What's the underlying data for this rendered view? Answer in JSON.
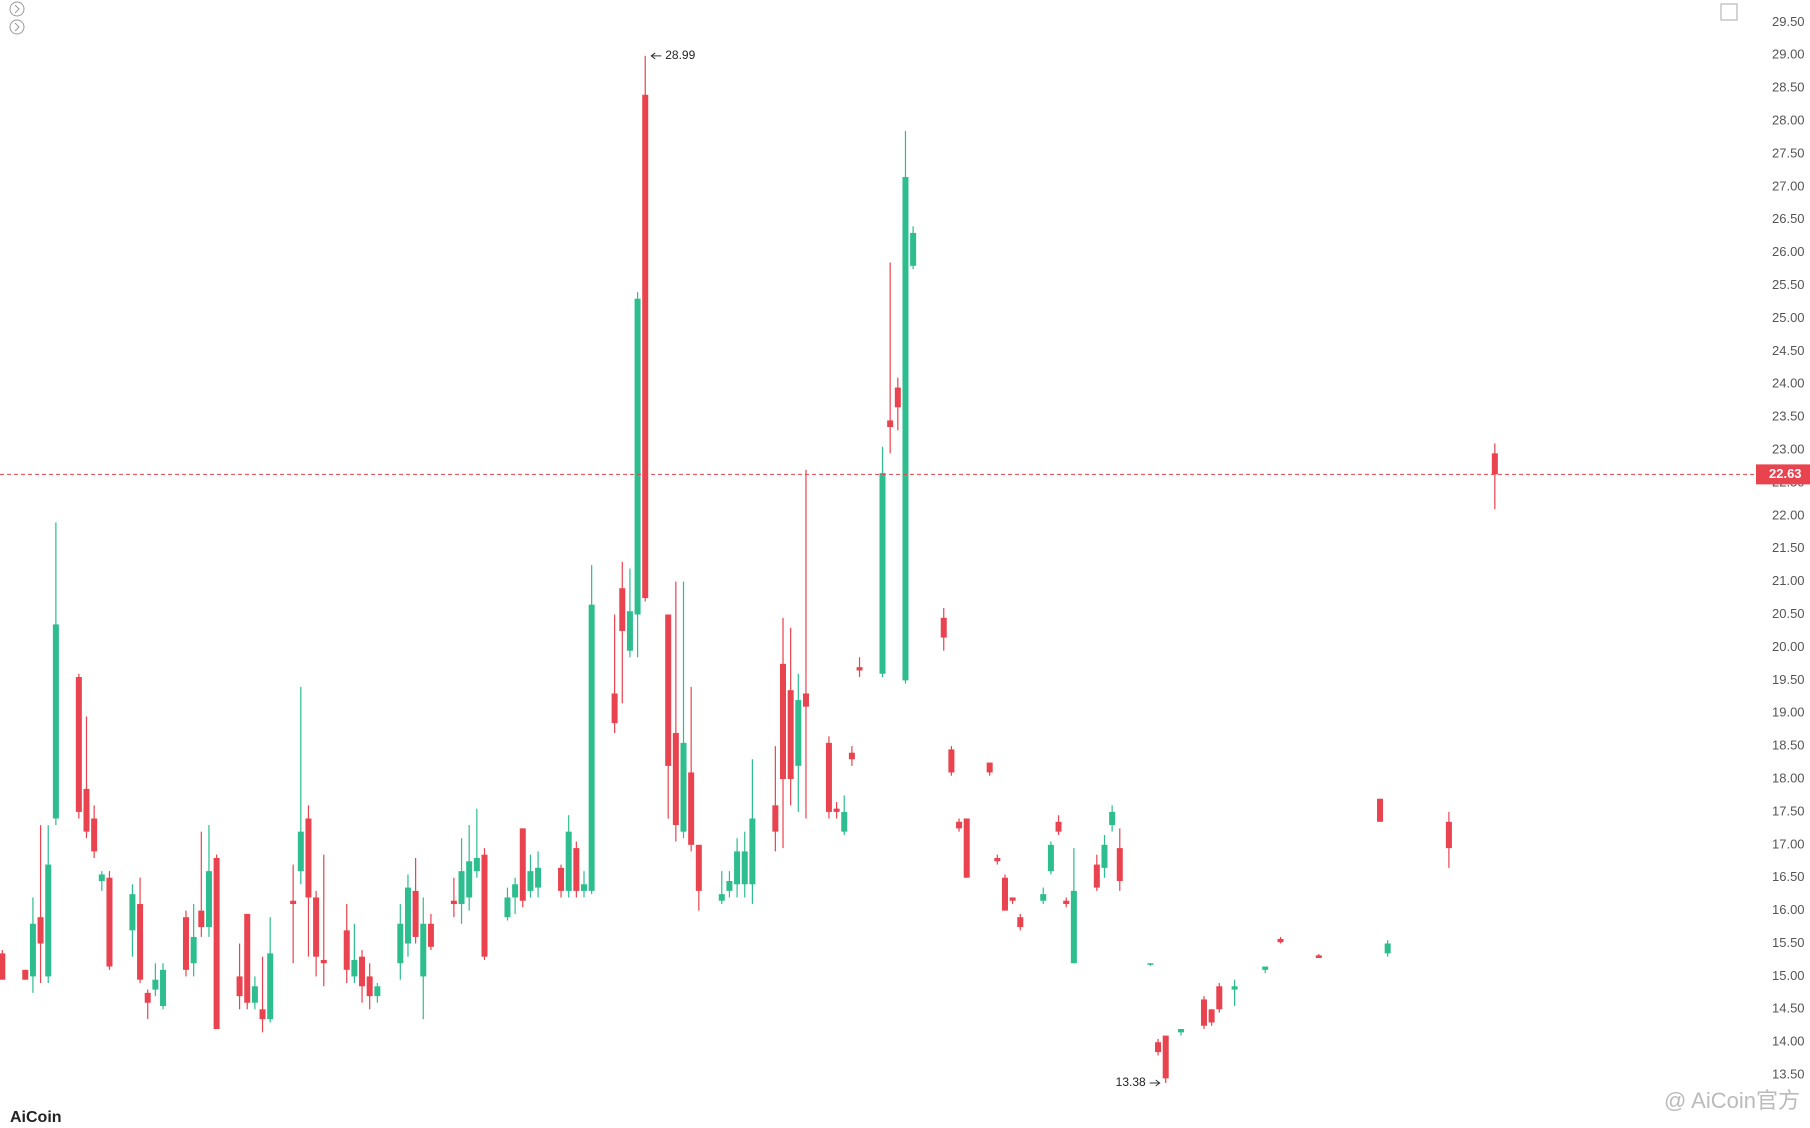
{
  "chart_data": {
    "type": "candlestick",
    "up_color": "#2dbd8e",
    "down_color": "#e8434f",
    "open": [
      15.35,
      null,
      null,
      15.1,
      15.0,
      15.9,
      15.0,
      17.4,
      null,
      null,
      19.55,
      17.85,
      17.4,
      16.45,
      16.5,
      null,
      null,
      15.7,
      16.1,
      14.75,
      14.8,
      14.55,
      null,
      null,
      15.9,
      15.2,
      16.0,
      15.75,
      16.8,
      null,
      null,
      15.0,
      15.95,
      14.6,
      14.5,
      14.35,
      null,
      null,
      16.15,
      16.6,
      17.4,
      16.2,
      15.25,
      null,
      null,
      15.7,
      15.0,
      15.3,
      15.0,
      14.7,
      null,
      null,
      15.2,
      15.5,
      16.3,
      15.0,
      15.8,
      null,
      null,
      16.15,
      16.1,
      16.2,
      16.6,
      16.85,
      null,
      null,
      15.9,
      16.2,
      17.25,
      16.3,
      16.35,
      null,
      null,
      16.65,
      16.3,
      16.95,
      16.3,
      16.3,
      null,
      null,
      19.3,
      20.9,
      19.95,
      20.5,
      28.4,
      null,
      null,
      20.5,
      18.7,
      17.2,
      18.1,
      17.0,
      null,
      null,
      16.15,
      16.3,
      16.4,
      16.4,
      16.4,
      null,
      null,
      17.6,
      19.75,
      19.35,
      18.2,
      19.3,
      null,
      null,
      18.55,
      17.55,
      17.2,
      18.4,
      19.7,
      null,
      null,
      19.6,
      23.45,
      23.95,
      19.5,
      25.8,
      null,
      null,
      null,
      20.45,
      18.45,
      17.35,
      17.4,
      null,
      null,
      18.25,
      16.8,
      16.5,
      16.2,
      15.9,
      null,
      null,
      16.15,
      16.6,
      17.35,
      16.15,
      15.2,
      null,
      null,
      16.7,
      16.65,
      17.3,
      16.95,
      null,
      null,
      null,
      15.18,
      14.0,
      14.1,
      null,
      14.15,
      null,
      null,
      14.65,
      14.5,
      14.85,
      null,
      14.8,
      null,
      null,
      null,
      15.1,
      null,
      15.57,
      null,
      null,
      null,
      null,
      15.32,
      null,
      null,
      null,
      null,
      null,
      null,
      null,
      17.7,
      15.35,
      null,
      null,
      null,
      null,
      null,
      null,
      null,
      17.35,
      null,
      null,
      null,
      null,
      null,
      22.95
    ],
    "high": [
      15.4,
      null,
      null,
      15.1,
      16.2,
      17.3,
      17.3,
      21.9,
      null,
      null,
      19.6,
      18.95,
      17.6,
      16.6,
      16.6,
      null,
      null,
      16.4,
      16.5,
      14.8,
      15.2,
      15.2,
      null,
      null,
      16.0,
      16.1,
      17.2,
      17.3,
      16.85,
      null,
      null,
      15.5,
      15.95,
      15.0,
      15.3,
      15.9,
      null,
      null,
      16.7,
      19.4,
      17.6,
      16.3,
      16.85,
      null,
      null,
      16.1,
      15.8,
      15.4,
      15.2,
      14.9,
      null,
      null,
      16.1,
      16.55,
      16.8,
      16.2,
      15.95,
      null,
      null,
      16.5,
      17.1,
      17.3,
      17.55,
      16.95,
      null,
      null,
      16.35,
      16.5,
      17.25,
      16.85,
      16.9,
      null,
      null,
      16.7,
      17.45,
      17.05,
      16.6,
      21.25,
      null,
      null,
      20.5,
      21.3,
      21.2,
      25.4,
      28.99,
      null,
      null,
      20.5,
      21.0,
      21.0,
      19.4,
      17.0,
      null,
      null,
      16.6,
      16.6,
      17.1,
      17.2,
      18.3,
      null,
      null,
      18.5,
      20.45,
      20.3,
      19.6,
      22.7,
      null,
      null,
      18.65,
      17.65,
      17.75,
      18.5,
      19.85,
      null,
      null,
      23.05,
      25.85,
      24.1,
      27.85,
      26.4,
      null,
      null,
      null,
      20.6,
      18.5,
      17.4,
      17.4,
      null,
      null,
      18.25,
      16.85,
      16.55,
      16.2,
      15.95,
      null,
      null,
      16.35,
      17.05,
      17.45,
      16.2,
      16.95,
      null,
      null,
      16.85,
      17.15,
      17.6,
      17.25,
      null,
      null,
      null,
      15.2,
      14.05,
      14.1,
      null,
      14.2,
      null,
      null,
      14.7,
      14.5,
      14.9,
      null,
      14.95,
      null,
      null,
      null,
      15.15,
      null,
      15.6,
      null,
      null,
      null,
      null,
      15.34,
      null,
      null,
      null,
      null,
      null,
      null,
      null,
      17.7,
      15.55,
      null,
      null,
      null,
      null,
      null,
      null,
      null,
      17.5,
      null,
      null,
      null,
      null,
      null,
      23.1
    ],
    "low": [
      14.95,
      null,
      null,
      14.95,
      14.75,
      14.9,
      14.9,
      17.3,
      null,
      null,
      17.4,
      17.1,
      16.8,
      16.3,
      15.1,
      null,
      null,
      15.3,
      14.9,
      14.35,
      14.7,
      14.5,
      null,
      null,
      15.0,
      15.0,
      15.6,
      15.6,
      14.2,
      null,
      null,
      14.5,
      14.5,
      14.5,
      14.15,
      14.3,
      null,
      null,
      15.2,
      16.4,
      15.3,
      15.0,
      14.85,
      null,
      null,
      14.9,
      14.9,
      14.6,
      14.5,
      14.6,
      null,
      null,
      14.95,
      15.3,
      15.5,
      14.35,
      15.4,
      null,
      null,
      15.9,
      15.8,
      16.0,
      16.5,
      15.25,
      null,
      null,
      15.85,
      15.95,
      16.05,
      16.2,
      16.2,
      null,
      null,
      16.2,
      16.2,
      16.2,
      16.2,
      16.25,
      null,
      null,
      18.7,
      19.15,
      19.85,
      19.85,
      20.7,
      null,
      null,
      17.4,
      17.05,
      17.1,
      16.9,
      16.0,
      null,
      null,
      16.1,
      16.2,
      16.2,
      16.2,
      16.1,
      null,
      null,
      16.9,
      16.95,
      17.6,
      17.5,
      17.4,
      null,
      null,
      17.4,
      17.4,
      17.15,
      18.2,
      19.55,
      null,
      null,
      19.55,
      22.95,
      23.3,
      19.45,
      25.75,
      null,
      null,
      null,
      19.95,
      18.05,
      17.2,
      16.5,
      null,
      null,
      18.05,
      16.7,
      16.0,
      16.1,
      15.7,
      null,
      null,
      16.1,
      16.55,
      17.15,
      16.05,
      15.2,
      null,
      null,
      16.3,
      16.5,
      17.2,
      16.3,
      null,
      null,
      null,
      15.16,
      13.8,
      13.38,
      null,
      14.1,
      null,
      null,
      14.2,
      14.25,
      14.45,
      null,
      14.55,
      null,
      null,
      null,
      15.05,
      null,
      15.5,
      null,
      null,
      null,
      null,
      15.28,
      null,
      null,
      null,
      null,
      null,
      null,
      null,
      17.35,
      15.3,
      null,
      null,
      null,
      null,
      null,
      null,
      null,
      16.65,
      null,
      null,
      null,
      null,
      null,
      22.1
    ],
    "close": [
      14.95,
      null,
      null,
      14.95,
      15.8,
      15.5,
      16.7,
      20.35,
      null,
      null,
      17.5,
      17.2,
      16.9,
      16.55,
      15.15,
      null,
      null,
      16.25,
      14.95,
      14.6,
      14.95,
      15.1,
      null,
      null,
      15.1,
      15.6,
      15.75,
      16.6,
      14.2,
      null,
      null,
      14.7,
      14.6,
      14.85,
      14.35,
      15.35,
      null,
      null,
      16.1,
      17.2,
      16.2,
      15.3,
      15.2,
      null,
      null,
      15.1,
      15.25,
      14.85,
      14.7,
      14.85,
      null,
      null,
      15.8,
      16.35,
      15.6,
      15.8,
      15.45,
      null,
      null,
      16.1,
      16.6,
      16.75,
      16.8,
      15.3,
      null,
      null,
      16.2,
      16.4,
      16.15,
      16.6,
      16.65,
      null,
      null,
      16.3,
      17.2,
      16.3,
      16.4,
      20.65,
      null,
      null,
      18.85,
      20.25,
      20.55,
      25.3,
      20.75,
      null,
      null,
      18.2,
      17.3,
      18.55,
      17.0,
      16.3,
      null,
      null,
      16.25,
      16.45,
      16.9,
      16.9,
      17.4,
      null,
      null,
      17.2,
      18.0,
      18.0,
      19.2,
      19.1,
      null,
      null,
      17.5,
      17.5,
      17.5,
      18.3,
      19.65,
      null,
      null,
      22.65,
      23.35,
      23.65,
      27.15,
      26.3,
      null,
      null,
      null,
      20.15,
      18.1,
      17.25,
      16.5,
      null,
      null,
      18.1,
      16.75,
      16.0,
      16.15,
      15.75,
      null,
      null,
      16.25,
      17.0,
      17.2,
      16.1,
      16.3,
      null,
      null,
      16.35,
      17.0,
      17.5,
      16.45,
      null,
      null,
      null,
      15.2,
      13.85,
      13.45,
      null,
      14.2,
      null,
      null,
      14.25,
      14.3,
      14.5,
      null,
      14.85,
      null,
      null,
      null,
      15.15,
      null,
      15.52,
      null,
      null,
      null,
      null,
      15.28,
      null,
      null,
      null,
      null,
      null,
      null,
      null,
      17.35,
      15.5,
      null,
      null,
      null,
      null,
      null,
      null,
      null,
      16.95,
      null,
      null,
      null,
      null,
      null,
      22.63
    ],
    "ylim": [
      13.0,
      29.84
    ],
    "yticks": [
      {
        "value": 29.5,
        "label": "29.50"
      },
      {
        "value": 29.0,
        "label": "29.00"
      },
      {
        "value": 28.5,
        "label": "28.50"
      },
      {
        "value": 28.0,
        "label": "28.00"
      },
      {
        "value": 27.5,
        "label": "27.50"
      },
      {
        "value": 27.0,
        "label": "27.00"
      },
      {
        "value": 26.5,
        "label": "26.50"
      },
      {
        "value": 26.0,
        "label": "26.00"
      },
      {
        "value": 25.5,
        "label": "25.50"
      },
      {
        "value": 25.0,
        "label": "25.00"
      },
      {
        "value": 24.5,
        "label": "24.50"
      },
      {
        "value": 24.0,
        "label": "24.00"
      },
      {
        "value": 23.5,
        "label": "23.50"
      },
      {
        "value": 23.0,
        "label": "23.00"
      },
      {
        "value": 22.5,
        "label": "22.50"
      },
      {
        "value": 22.0,
        "label": "22.00"
      },
      {
        "value": 21.5,
        "label": "21.50"
      },
      {
        "value": 21.0,
        "label": "21.00"
      },
      {
        "value": 20.5,
        "label": "20.50"
      },
      {
        "value": 20.0,
        "label": "20.00"
      },
      {
        "value": 19.5,
        "label": "19.50"
      },
      {
        "value": 19.0,
        "label": "19.00"
      },
      {
        "value": 18.5,
        "label": "18.50"
      },
      {
        "value": 18.0,
        "label": "18.00"
      },
      {
        "value": 17.5,
        "label": "17.50"
      },
      {
        "value": 17.0,
        "label": "17.00"
      },
      {
        "value": 16.5,
        "label": "16.50"
      },
      {
        "value": 16.0,
        "label": "16.00"
      },
      {
        "value": 15.5,
        "label": "15.50"
      },
      {
        "value": 15.0,
        "label": "15.00"
      },
      {
        "value": 14.5,
        "label": "14.50"
      },
      {
        "value": 14.0,
        "label": "14.00"
      },
      {
        "value": 13.5,
        "label": "13.50"
      }
    ],
    "grid": false,
    "last_price": 22.63,
    "max_annotation": 28.99,
    "min_annotation": 13.38,
    "logo": "AiCoin",
    "watermark": "@ AiCoin官方"
  }
}
